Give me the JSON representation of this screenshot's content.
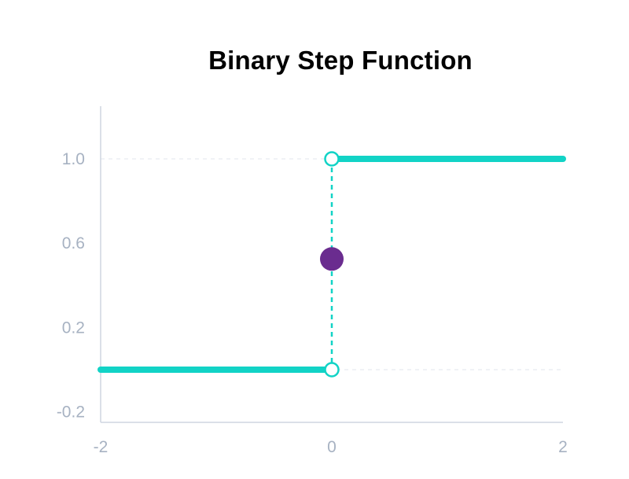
{
  "chart_data": {
    "type": "line",
    "title": "Binary Step Function",
    "xlabel": "",
    "ylabel": "",
    "xlim": [
      -2,
      2
    ],
    "ylim": [
      -0.25,
      1.25
    ],
    "x_ticks": [
      -2,
      0,
      2
    ],
    "x_tick_labels": [
      "-2",
      "0",
      "2"
    ],
    "y_ticks": [
      -0.2,
      0.2,
      0.6,
      1.0
    ],
    "y_tick_labels": [
      "-0.2",
      "0.2",
      "0.6",
      "1.0"
    ],
    "grid": "horizontal dashed at y=0 and y=1",
    "legend": "none",
    "series": [
      {
        "x": [
          -2,
          0
        ],
        "y": [
          0,
          0
        ]
      },
      {
        "x": [
          0,
          2
        ],
        "y": [
          1,
          1
        ]
      }
    ],
    "open_points": [
      {
        "x": 0,
        "y": 0
      },
      {
        "x": 0,
        "y": 1
      }
    ],
    "filled_points": [
      {
        "x": 0,
        "y": 0.525
      }
    ],
    "colors": {
      "line": "#12d3c6",
      "point_fill": "#6a2c8f",
      "axis": "#cfd6e0",
      "grid": "#e6eaf0",
      "tick_text": "#a7b2c2"
    }
  }
}
